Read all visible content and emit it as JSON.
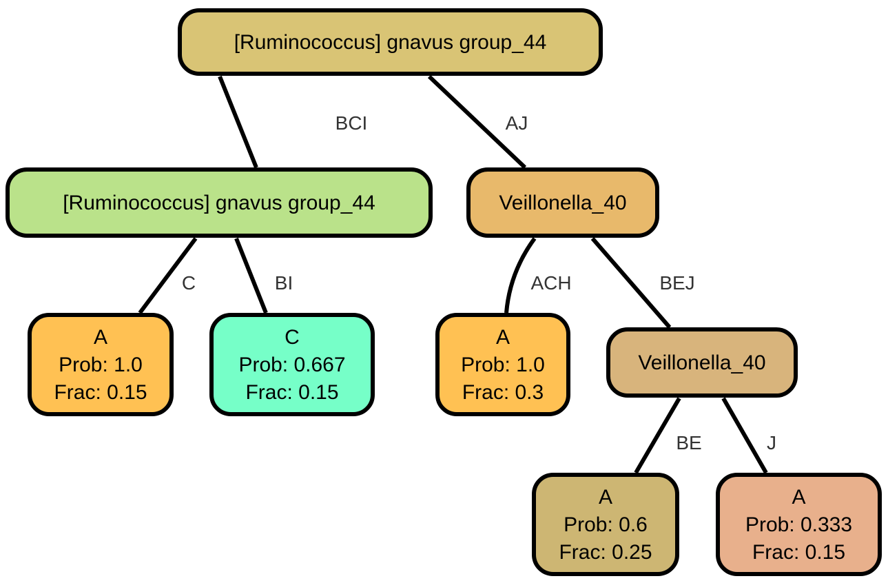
{
  "tree": {
    "nodes": [
      {
        "id": "root",
        "lines": [
          "[Ruminococcus] gnavus group_44"
        ],
        "color": "#d9c475"
      },
      {
        "id": "left",
        "lines": [
          "[Ruminococcus] gnavus group_44"
        ],
        "color": "#bae28a"
      },
      {
        "id": "right",
        "lines": [
          "Veillonella_40"
        ],
        "color": "#e8b96b"
      },
      {
        "id": "leaf-ll",
        "lines": [
          "A",
          "Prob: 1.0",
          "Frac: 0.15"
        ],
        "color": "#ffc153"
      },
      {
        "id": "leaf-lr",
        "lines": [
          "C",
          "Prob: 0.667",
          "Frac: 0.15"
        ],
        "color": "#76ffc8"
      },
      {
        "id": "leaf-rl",
        "lines": [
          "A",
          "Prob: 1.0",
          "Frac: 0.3"
        ],
        "color": "#ffc153"
      },
      {
        "id": "rr",
        "lines": [
          "Veillonella_40"
        ],
        "color": "#d8b47c"
      },
      {
        "id": "leaf-rrl",
        "lines": [
          "A",
          "Prob: 0.6",
          "Frac: 0.25"
        ],
        "color": "#cdb673"
      },
      {
        "id": "leaf-rrr",
        "lines": [
          "A",
          "Prob: 0.333",
          "Frac: 0.15"
        ],
        "color": "#e8b08c"
      }
    ],
    "edges": [
      {
        "from": "root",
        "to": "left",
        "label": "BCI"
      },
      {
        "from": "root",
        "to": "right",
        "label": "AJ"
      },
      {
        "from": "left",
        "to": "leaf-ll",
        "label": "C"
      },
      {
        "from": "left",
        "to": "leaf-lr",
        "label": "BI"
      },
      {
        "from": "right",
        "to": "leaf-rl",
        "label": "ACH"
      },
      {
        "from": "right",
        "to": "rr",
        "label": "BEJ"
      },
      {
        "from": "rr",
        "to": "leaf-rrl",
        "label": "BE"
      },
      {
        "from": "rr",
        "to": "leaf-rrr",
        "label": "J"
      }
    ]
  }
}
